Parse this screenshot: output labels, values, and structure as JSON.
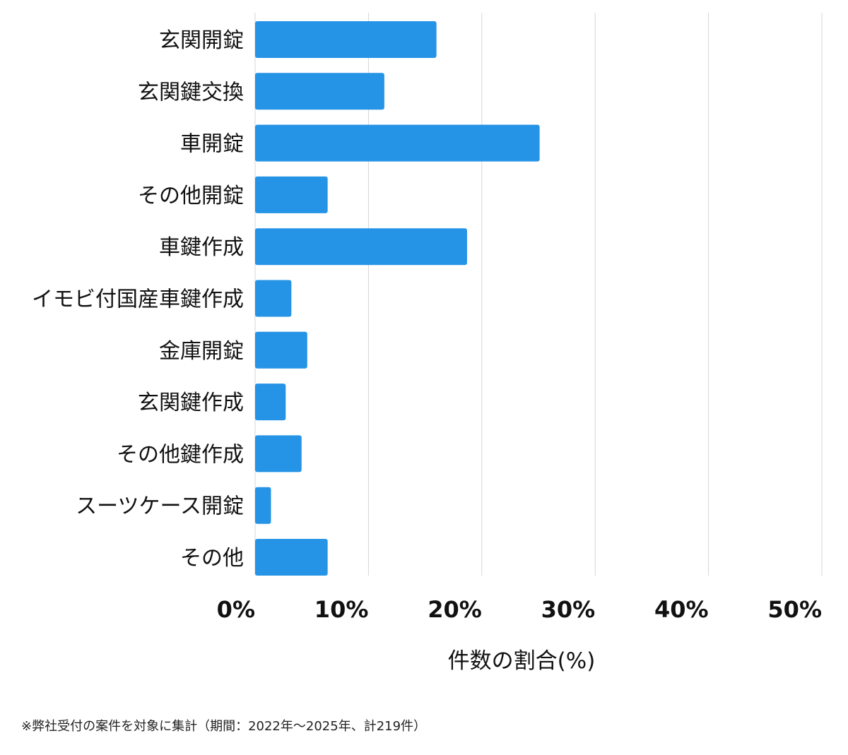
{
  "chart_data": {
    "type": "bar",
    "orientation": "horizontal",
    "categories": [
      "玄関開錠",
      "玄関鍵交換",
      "車開錠",
      "その他開錠",
      "車鍵作成",
      "イモビ付国産車鍵作成",
      "金庫開錠",
      "玄関鍵作成",
      "その他鍵作成",
      "スーツケース開錠",
      "その他"
    ],
    "values": [
      16.0,
      11.4,
      25.1,
      6.4,
      18.7,
      3.2,
      4.6,
      2.7,
      4.1,
      1.4,
      6.4
    ],
    "xlim": [
      0,
      50
    ],
    "xticks": [
      0,
      10,
      20,
      30,
      40,
      50
    ],
    "xtick_labels": [
      "0%",
      "10%",
      "20%",
      "30%",
      "40%",
      "50%"
    ],
    "xlabel": "件数の割合(%)",
    "title": "",
    "grid": true,
    "bar_color": "#2593e6",
    "grid_color": "#d6d6d6"
  },
  "footnote": "※弊社受付の案件を対象に集計（期間：2022年〜2025年、計219件）"
}
